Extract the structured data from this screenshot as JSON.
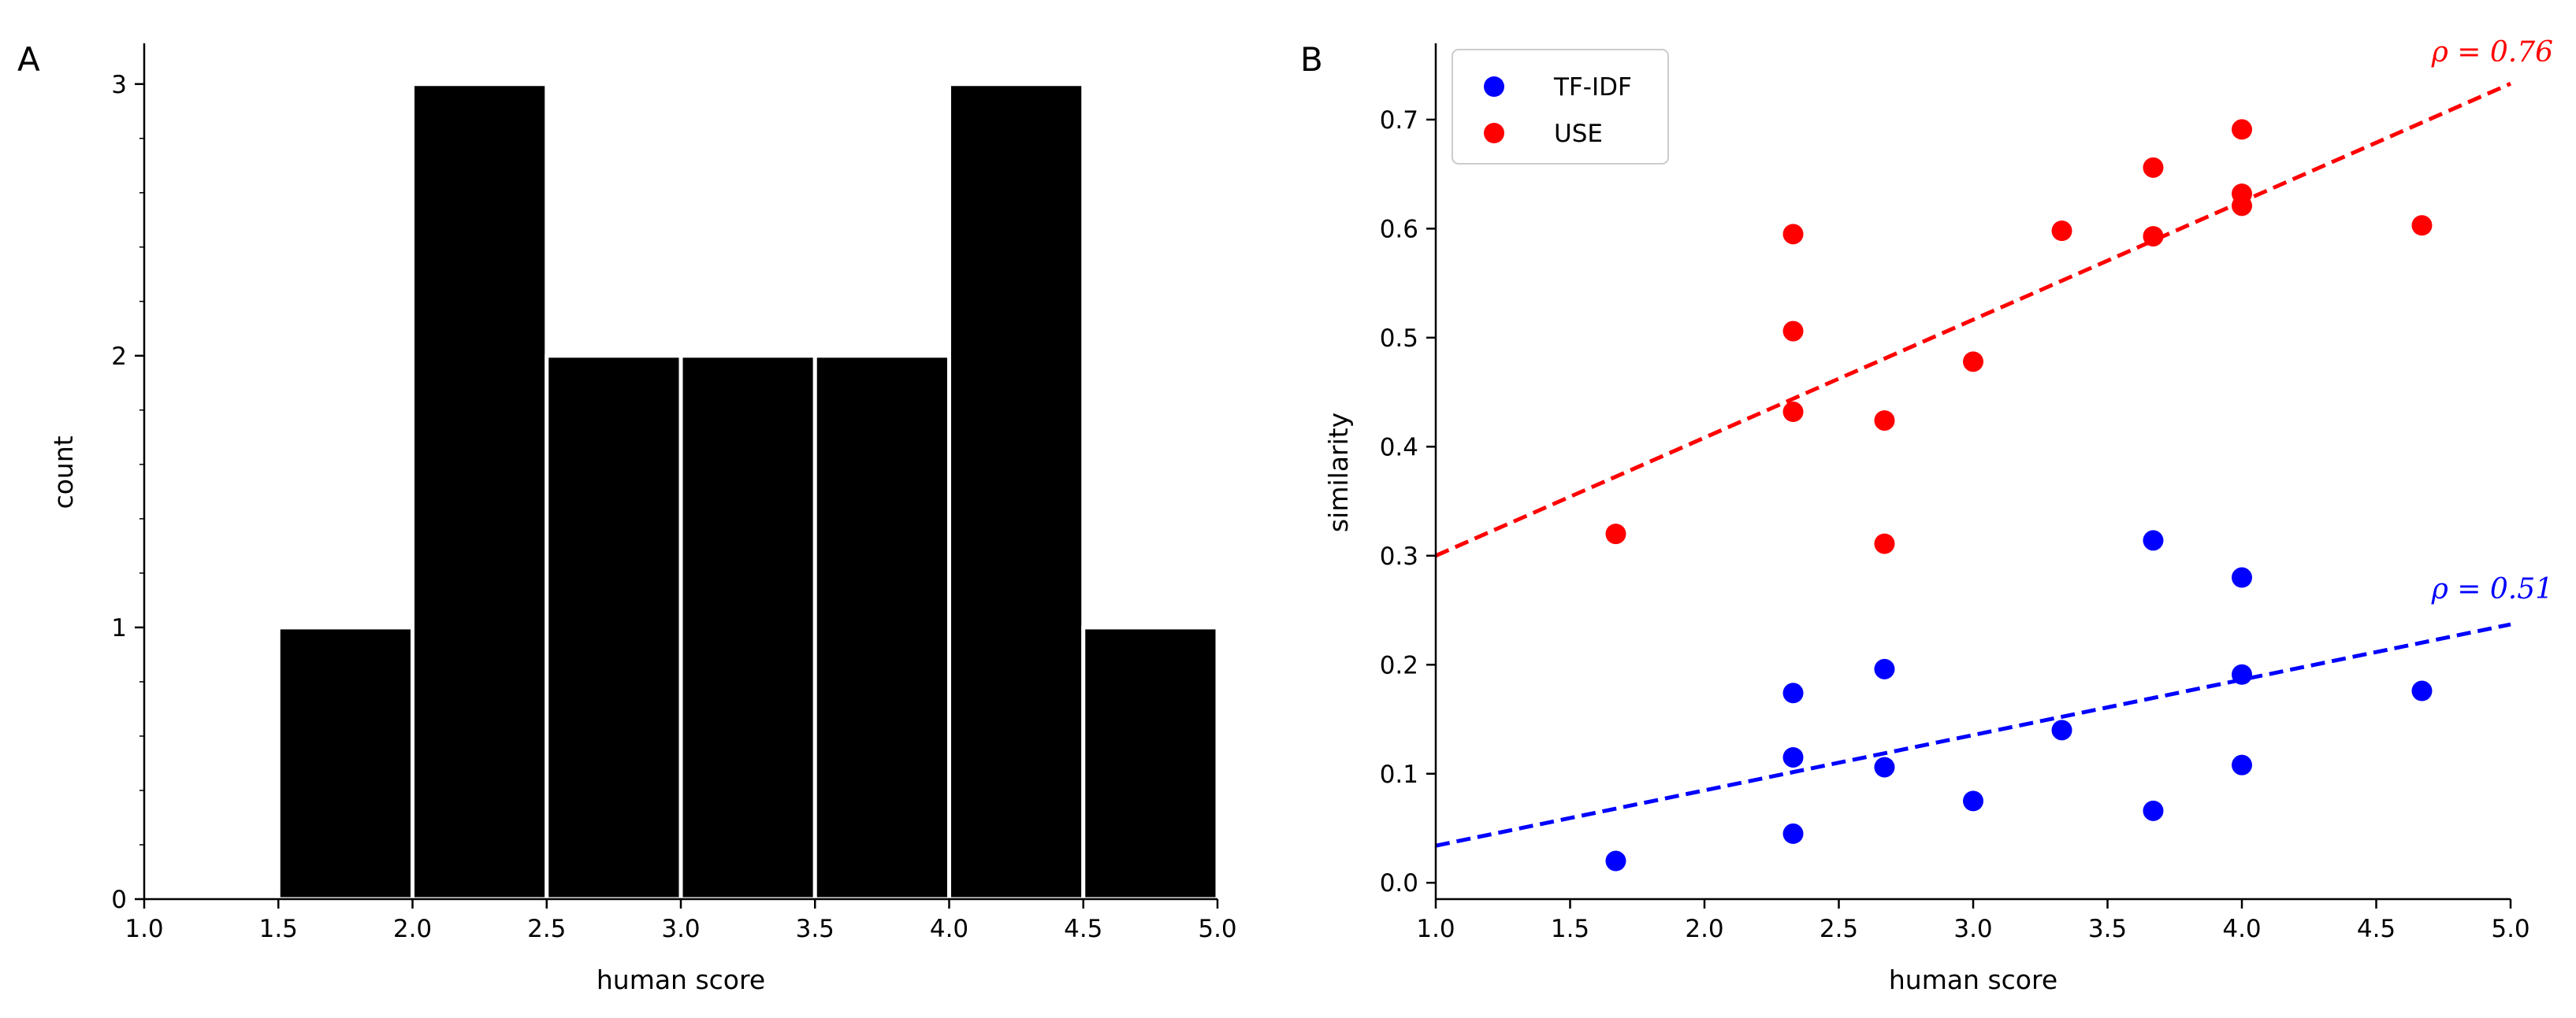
{
  "chart_data": [
    {
      "panel": "A",
      "type": "bar",
      "subtype": "histogram",
      "bins": [
        [
          1.5,
          2.0
        ],
        [
          2.0,
          2.5
        ],
        [
          2.5,
          3.0
        ],
        [
          3.0,
          3.5
        ],
        [
          3.5,
          4.0
        ],
        [
          4.0,
          4.5
        ],
        [
          4.5,
          5.0
        ]
      ],
      "values": [
        1,
        3,
        2,
        2,
        2,
        3,
        1
      ],
      "xlabel": "human score",
      "ylabel": "count",
      "xlim": [
        1.0,
        5.0
      ],
      "ylim": [
        0,
        3.15
      ],
      "xticks": [
        "1.0",
        "1.5",
        "2.0",
        "2.5",
        "3.0",
        "3.5",
        "4.0",
        "4.5",
        "5.0"
      ],
      "yticks": [
        "0",
        "1",
        "2",
        "3"
      ],
      "bar_color": "#000000",
      "grid": false
    },
    {
      "panel": "B",
      "type": "scatter",
      "xlabel": "human score",
      "ylabel": "similarity",
      "xlim": [
        1.0,
        5.0
      ],
      "ylim": [
        -0.015,
        0.77
      ],
      "xticks": [
        "1.0",
        "1.5",
        "2.0",
        "2.5",
        "3.0",
        "3.5",
        "4.0",
        "4.5",
        "5.0"
      ],
      "yticks": [
        "0.0",
        "0.1",
        "0.2",
        "0.3",
        "0.4",
        "0.5",
        "0.6",
        "0.7"
      ],
      "legend_position": "top-left",
      "grid": false,
      "series": [
        {
          "name": "TF-IDF",
          "color": "#0000ff",
          "x": [
            1.67,
            2.33,
            2.33,
            2.33,
            2.67,
            2.67,
            3.0,
            3.33,
            3.67,
            3.67,
            4.0,
            4.0,
            4.0,
            4.67
          ],
          "y": [
            0.02,
            0.045,
            0.115,
            0.174,
            0.106,
            0.196,
            0.075,
            0.14,
            0.066,
            0.314,
            0.108,
            0.191,
            0.28,
            0.176
          ],
          "fit": {
            "x": [
              1.0,
              5.0
            ],
            "y": [
              0.034,
              0.237
            ]
          },
          "rho_label": "ρ = 0.51"
        },
        {
          "name": "USE",
          "color": "#ff0000",
          "x": [
            1.67,
            2.33,
            2.33,
            2.33,
            2.67,
            2.67,
            3.0,
            3.33,
            3.67,
            3.67,
            4.0,
            4.0,
            4.0,
            4.67
          ],
          "y": [
            0.32,
            0.432,
            0.506,
            0.595,
            0.311,
            0.424,
            0.478,
            0.598,
            0.593,
            0.656,
            0.621,
            0.632,
            0.691,
            0.603
          ],
          "fit": {
            "x": [
              1.0,
              5.0
            ],
            "y": [
              0.3,
              0.733
            ]
          },
          "rho_label": "ρ = 0.76"
        }
      ]
    }
  ]
}
